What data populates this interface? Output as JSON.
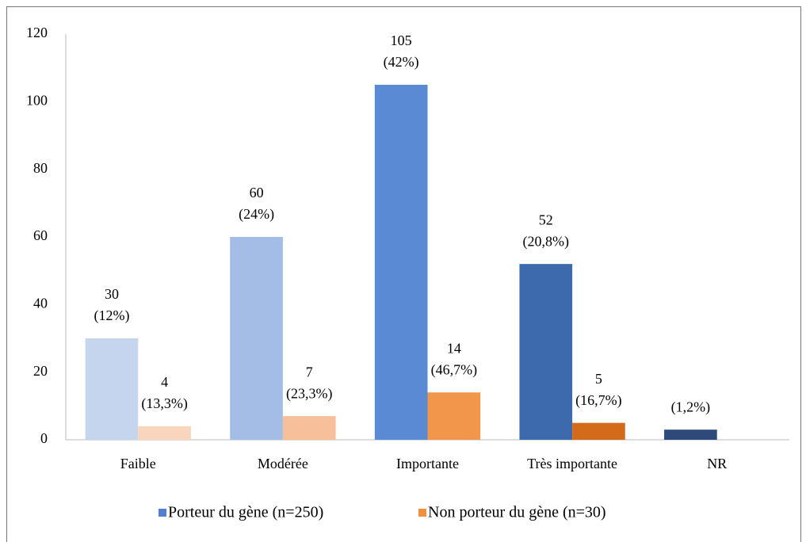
{
  "chart_data": {
    "type": "bar",
    "categories": [
      "Faible",
      "Modérée",
      "Importante",
      "Très importante",
      "NR"
    ],
    "series": [
      {
        "name": "Porteur du gène (n=250)",
        "color": "#4f81d0",
        "bar_colors": [
          "#c5d5ee",
          "#a3bde6",
          "#5a8ad4",
          "#3d6aad",
          "#2d4a7b"
        ],
        "values": [
          30,
          60,
          105,
          52,
          3
        ],
        "value_labels": [
          "30",
          "60",
          "105",
          "52",
          null
        ],
        "percent_labels": [
          "(12%)",
          "(24%)",
          "(42%)",
          "(20,8%)",
          "(1,2%)"
        ]
      },
      {
        "name": "Non porteur du gène (n=30)",
        "color": "#f0913f",
        "bar_colors": [
          "#fad5bd",
          "#f7c09a",
          "#f1964a",
          "#d36b1b",
          null
        ],
        "values": [
          4,
          7,
          14,
          5,
          null
        ],
        "value_labels": [
          "4",
          "7",
          "14",
          "5",
          null
        ],
        "percent_labels": [
          "(13,3%)",
          "(23,3%)",
          "(46,7%)",
          "(16,7%)",
          null
        ]
      }
    ],
    "ylim": [
      0,
      120
    ],
    "yticks": [
      0,
      20,
      40,
      60,
      80,
      100,
      120
    ],
    "grid": false,
    "legend": "bottom"
  }
}
